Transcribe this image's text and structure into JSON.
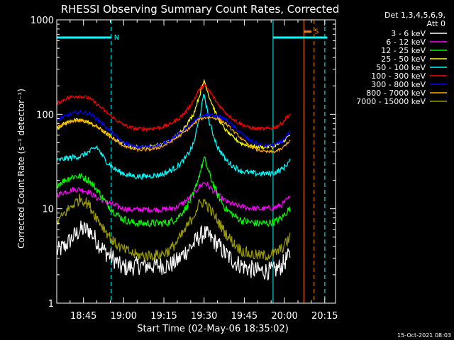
{
  "chart_data": {
    "type": "line",
    "title": "RHESSI Observing Summary Count Rates, Corrected",
    "xlabel": "Start Time (02-May-06 18:35:02)",
    "ylabel": "Corrected Count Rate (s⁻¹ detector⁻¹)",
    "yscale": "log",
    "ylim": [
      1,
      1000
    ],
    "xlim_minutes_after_start": [
      0,
      104
    ],
    "x_ticks": [
      {
        "label": "18:45",
        "minute": 9.97
      },
      {
        "label": "19:00",
        "minute": 24.97
      },
      {
        "label": "19:15",
        "minute": 39.97
      },
      {
        "label": "19:30",
        "minute": 54.97
      },
      {
        "label": "19:45",
        "minute": 69.97
      },
      {
        "label": "20:00",
        "minute": 84.97
      },
      {
        "label": "20:15",
        "minute": 99.97
      }
    ],
    "y_ticks": [
      {
        "label": "1",
        "value": 1
      },
      {
        "label": "10",
        "value": 10
      },
      {
        "label": "100",
        "value": 100
      },
      {
        "label": "1000",
        "value": 1000
      }
    ],
    "legend": {
      "placement": "right",
      "header": [
        "Det 1,3,4,5,6,9,",
        "Att 0"
      ]
    },
    "x": [
      0,
      3,
      6,
      9,
      12,
      15,
      18,
      21,
      24,
      27,
      30,
      33,
      36,
      39,
      42,
      45,
      48,
      51,
      53,
      55,
      57,
      60,
      63,
      66,
      69,
      72,
      75,
      78,
      81,
      84,
      86,
      87
    ],
    "series": [
      {
        "name": "3 - 6 keV",
        "color": "#ffffff",
        "noise": 0.1,
        "values": [
          3.5,
          4,
          5,
          6,
          6,
          4.5,
          3.5,
          3,
          2.4,
          2.4,
          2.5,
          2.5,
          2.5,
          2.5,
          2.5,
          2.8,
          3.5,
          4.2,
          5,
          5.5,
          5,
          4.2,
          3.3,
          2.8,
          2.5,
          2.3,
          2.2,
          2.2,
          2.2,
          2.5,
          3,
          3.2
        ]
      },
      {
        "name": "6 - 12 keV",
        "color": "#ff00ff",
        "noise": 0.03,
        "values": [
          14,
          15,
          16,
          16,
          15,
          13,
          12,
          11,
          10.2,
          9.8,
          9.8,
          9.8,
          9.8,
          9.8,
          10,
          10.5,
          12,
          14,
          17,
          19,
          17,
          14,
          12,
          11,
          10.5,
          10.2,
          10,
          10,
          10.2,
          11,
          12.5,
          13
        ]
      },
      {
        "name": "12 - 25 keV",
        "color": "#00ff00",
        "noise": 0.04,
        "values": [
          18,
          20,
          22,
          22,
          20,
          16,
          12,
          9.5,
          8,
          7.3,
          7,
          7,
          7,
          7,
          7.2,
          8,
          10,
          14,
          22,
          34,
          23,
          14,
          10,
          8.5,
          7.5,
          7.2,
          7,
          7,
          7.2,
          8,
          9.5,
          10
        ]
      },
      {
        "name": "25 - 50 keV",
        "color": "#ffff00",
        "noise": 0.02,
        "values": [
          72,
          80,
          86,
          86,
          82,
          74,
          64,
          56,
          50,
          46,
          45,
          45,
          46,
          48,
          52,
          60,
          75,
          100,
          150,
          230,
          150,
          92,
          68,
          56,
          49,
          46,
          45,
          45,
          46,
          50,
          57,
          60
        ]
      },
      {
        "name": "50 - 100 keV",
        "color": "#00ffff",
        "noise": 0.03,
        "values": [
          32,
          34,
          35,
          36,
          40,
          45,
          33,
          27,
          24,
          22.5,
          22,
          22,
          22.5,
          23,
          25,
          28,
          34,
          48,
          85,
          165,
          80,
          45,
          33,
          28,
          25,
          24,
          23.5,
          23.5,
          24,
          26,
          30,
          32
        ]
      },
      {
        "name": "100 - 300 keV",
        "color": "#ff0000",
        "noise": 0.02,
        "values": [
          130,
          145,
          155,
          155,
          148,
          128,
          108,
          92,
          80,
          73,
          70,
          70,
          71,
          73,
          78,
          88,
          105,
          140,
          180,
          205,
          175,
          130,
          104,
          88,
          78,
          72,
          70,
          70,
          72,
          80,
          95,
          100
        ]
      },
      {
        "name": "300 - 800 keV",
        "color": "#0000ff",
        "noise": 0.02,
        "values": [
          86,
          95,
          102,
          106,
          102,
          90,
          75,
          62,
          52,
          47,
          45,
          45,
          46,
          48,
          53,
          60,
          70,
          82,
          92,
          97,
          98,
          96,
          88,
          74,
          62,
          53,
          48,
          46,
          47,
          52,
          60,
          64
        ]
      },
      {
        "name": "800 - 7000 keV",
        "color": "#ffaa00",
        "noise": 0.015,
        "values": [
          72,
          80,
          85,
          86,
          83,
          74,
          64,
          55,
          48,
          44,
          42,
          42,
          43,
          45,
          50,
          57,
          66,
          78,
          88,
          92,
          93,
          90,
          80,
          66,
          55,
          46,
          42,
          40,
          40,
          43,
          50,
          52
        ]
      },
      {
        "name": "7000 - 15000 keV",
        "color": "#999900",
        "noise": 0.06,
        "values": [
          7,
          9,
          11,
          13,
          11,
          8,
          6,
          4.5,
          3.8,
          3.5,
          3.2,
          3.2,
          3.2,
          3.3,
          3.6,
          4.5,
          6,
          8.5,
          11,
          12,
          10,
          7.5,
          5.5,
          4.3,
          3.6,
          3.3,
          3.2,
          3.2,
          3.3,
          3.8,
          4.5,
          5
        ]
      }
    ],
    "markers": [
      {
        "type": "vline",
        "color": "#00ffff",
        "dashed": false,
        "minute": 0
      },
      {
        "type": "vline",
        "color": "#00ffff",
        "dashed": true,
        "minute": 20.3
      },
      {
        "type": "vline",
        "color": "#00ffff",
        "dashed": false,
        "minute": 80.7
      },
      {
        "type": "vline",
        "color": "#00ffff",
        "dashed": true,
        "minute": 100
      },
      {
        "type": "vline",
        "color": "#ff8000",
        "dashed": false,
        "minute": 92.2
      },
      {
        "type": "vline",
        "color": "#ff8000",
        "dashed": true,
        "minute": 96
      }
    ],
    "bars": [
      {
        "label": "N",
        "color": "#00ffff",
        "start": 0,
        "end": 20.3,
        "value": 650
      },
      {
        "label": "",
        "color": "#00ffff",
        "start": 80.7,
        "end": 100.9,
        "value": 650
      },
      {
        "label": "S",
        "color": "#ff8000",
        "start": 92.2,
        "end": 95,
        "value": 750
      }
    ]
  },
  "footer": {
    "date": "15-Oct-2021 08:03"
  }
}
